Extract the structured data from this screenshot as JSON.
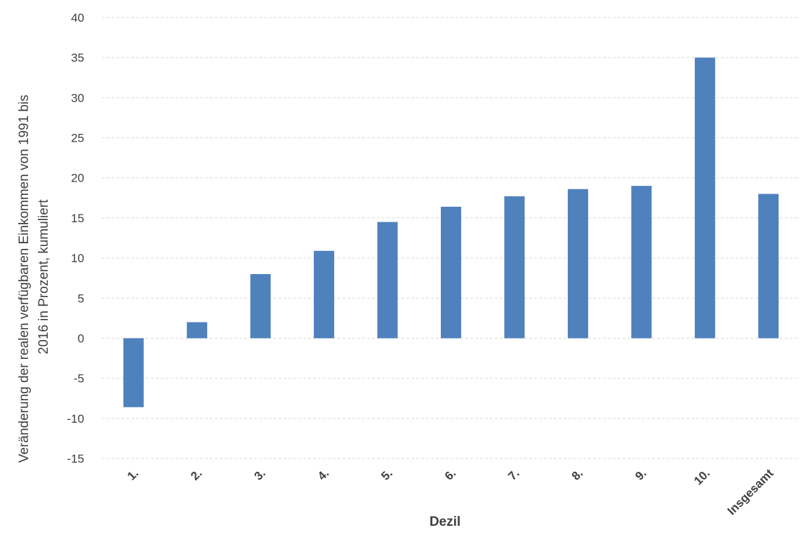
{
  "chart_data": {
    "type": "bar",
    "categories": [
      "1.",
      "2.",
      "3.",
      "4.",
      "5.",
      "6.",
      "7.",
      "8.",
      "9.",
      "10.",
      "Insgesamt"
    ],
    "values": [
      -8.6,
      2.0,
      8.0,
      10.9,
      14.5,
      16.4,
      17.7,
      18.6,
      19.0,
      35.0,
      18.0
    ],
    "xlabel": "Dezil",
    "ylabel_lines": [
      "Veränderung der realen verfügbaren Einkommen von 1991 bis",
      "2016 in Prozent, kumuliert"
    ],
    "ylim": [
      -15,
      40
    ],
    "yticks": [
      40,
      35,
      30,
      25,
      20,
      15,
      10,
      5,
      0,
      -5,
      -10,
      -15
    ],
    "grid": true,
    "bar_color": "#4f81bd",
    "gridline_color": "#d9d9d9"
  }
}
